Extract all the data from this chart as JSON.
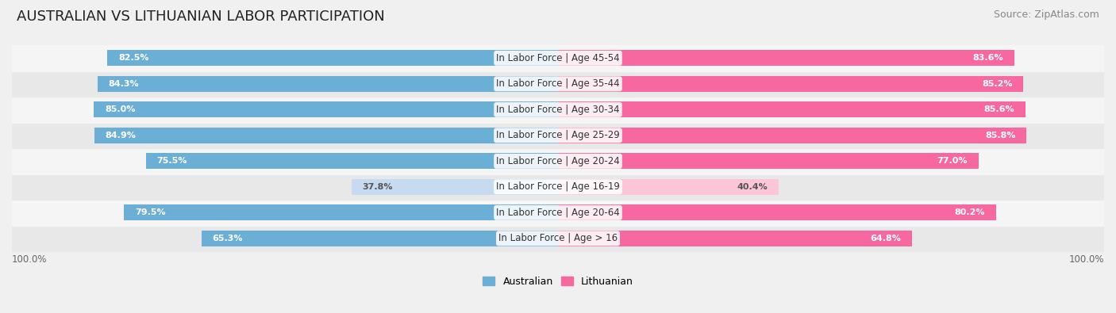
{
  "title": "AUSTRALIAN VS LITHUANIAN LABOR PARTICIPATION",
  "source": "Source: ZipAtlas.com",
  "categories": [
    "In Labor Force | Age > 16",
    "In Labor Force | Age 20-64",
    "In Labor Force | Age 16-19",
    "In Labor Force | Age 20-24",
    "In Labor Force | Age 25-29",
    "In Labor Force | Age 30-34",
    "In Labor Force | Age 35-44",
    "In Labor Force | Age 45-54"
  ],
  "australian_values": [
    65.3,
    79.5,
    37.8,
    75.5,
    84.9,
    85.0,
    84.3,
    82.5
  ],
  "lithuanian_values": [
    64.8,
    80.2,
    40.4,
    77.0,
    85.8,
    85.6,
    85.2,
    83.6
  ],
  "australian_color": "#6baed6",
  "lithuanian_color": "#f768a1",
  "australian_color_light": "#c6dbef",
  "lithuanian_color_light": "#fcc5d8",
  "background_color": "#f0f0f0",
  "max_value": 100.0,
  "legend_labels": [
    "Australian",
    "Lithuanian"
  ],
  "title_fontsize": 13,
  "label_fontsize": 8.5,
  "value_fontsize": 8,
  "source_fontsize": 9
}
